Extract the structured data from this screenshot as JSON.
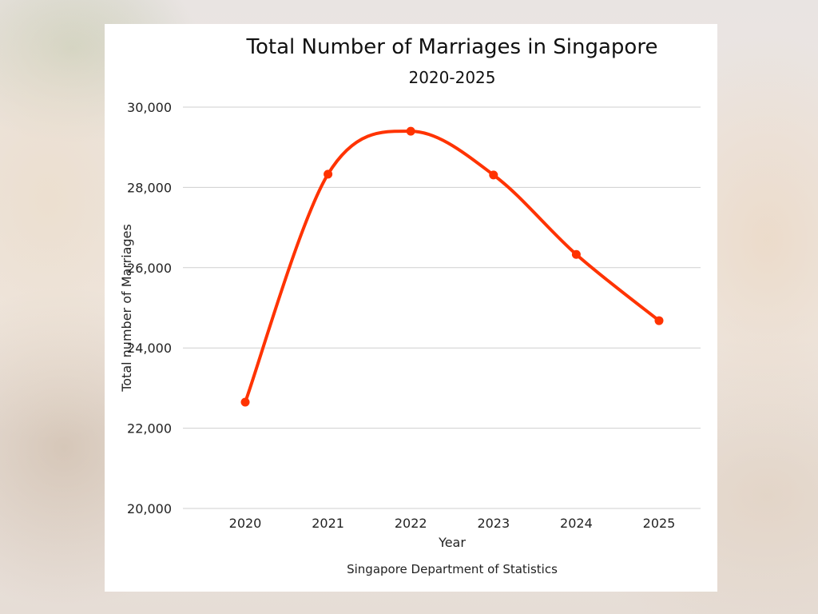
{
  "chart_data": {
    "type": "line",
    "title": "Total Number of Marriages in Singapore",
    "subtitle": "2020-2025",
    "xlabel": "Year",
    "ylabel": "Total number of Marriages",
    "source": "Singapore Department of Statistics",
    "categories": [
      "2020",
      "2021",
      "2022",
      "2023",
      "2024",
      "2025"
    ],
    "values": [
      22650,
      28330,
      29400,
      28310,
      26330,
      24680
    ],
    "ylim": [
      20000,
      30000
    ],
    "yticks": [
      20000,
      22000,
      24000,
      26000,
      28000,
      30000
    ],
    "ytick_labels": [
      "20,000",
      "22,000",
      "24,000",
      "26,000",
      "28,000",
      "30,000"
    ],
    "grid": true,
    "smooth": true,
    "line_color": "#ff3300"
  }
}
